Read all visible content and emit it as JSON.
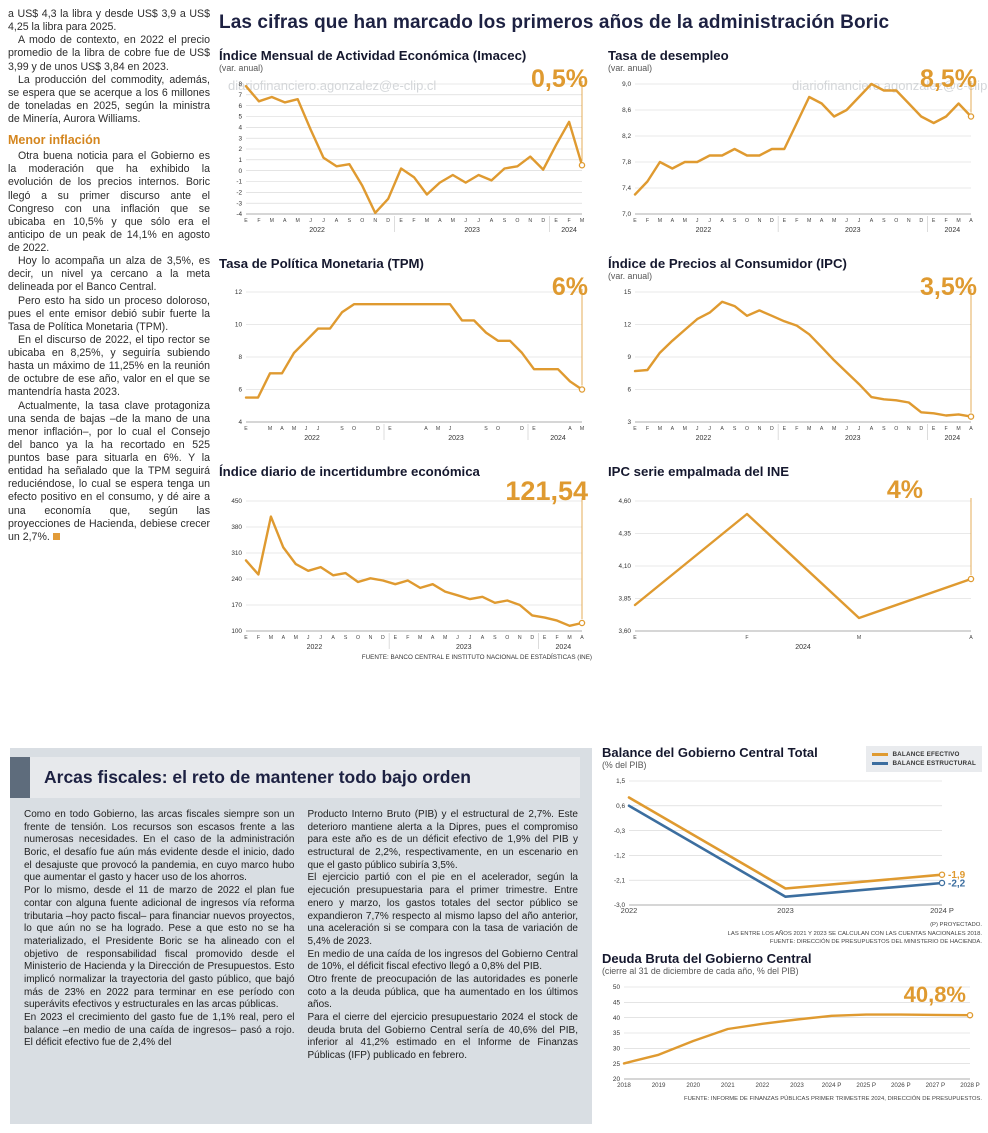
{
  "colors": {
    "accent_orange": "#DF9A30",
    "accent_blue": "#3C6E9F",
    "title_navy": "#1d2142",
    "panel_gray": "#d9dee3"
  },
  "watermark": {
    "text": "diariofinanciero.agonzalez@e-clip.cl"
  },
  "main_title": "Las cifras que han marcado los primeros años de la administración Boric",
  "left_article": {
    "paragraphs_top": [
      "a US$ 4,3 la libra y desde US$ 3,9 a US$ 4,25 la libra para 2025.",
      "A modo de contexto, en 2022 el precio promedio de la libra de cobre fue de US$ 3,99 y de unos US$ 3,84 en 2023.",
      "La producción del commodity, además, se espera que se acerque a los 6 millones de toneladas en 2025, según la ministra de Minería, Aurora Williams."
    ],
    "heading": "Menor inflación",
    "paragraphs_inflation": [
      "Otra buena noticia para el Gobierno es la moderación que ha exhibido la evolución de los precios internos. Boric llegó a su primer discurso ante el Congreso con una inflación que se ubicaba en 10,5% y que sólo era el anticipo de un peak de 14,1% en agosto de 2022.",
      "Hoy lo acompaña un alza de 3,5%, es decir, un nivel ya cercano a la meta delineada por el Banco Central.",
      "Pero esto ha sido un proceso doloroso, pues el ente emisor debió subir fuerte la Tasa de Política Monetaria (TPM).",
      "En el discurso de 2022, el tipo rector se ubicaba en 8,25%, y seguiría subiendo hasta un máximo de 11,25% en la reunión de octubre de ese año, valor en el que se mantendría hasta 2023.",
      "Actualmente, la tasa clave protagoniza una senda de bajas –de la mano de una menor inflación–, por lo cual el Consejo del banco ya la ha recortado en 525 puntos base para situarla en 6%. Y la entidad ha señalado que la TPM seguirá reduciéndose, lo cual se espera tenga un efecto positivo en el consumo, y dé aire a una economía que, según las proyecciones de Hacienda, debiese crecer un 2,7%."
    ]
  },
  "chart_data": [
    {
      "type": "line",
      "title": "Índice Mensual de Actividad Económica (Imacec)",
      "subtitle": "(var. anual)",
      "big_label": "0,5%",
      "color": "#DF9A30",
      "x": [
        "E",
        "F",
        "M",
        "A",
        "M",
        "J",
        "J",
        "A",
        "S",
        "O",
        "N",
        "D",
        "E",
        "F",
        "M",
        "A",
        "M",
        "J",
        "J",
        "A",
        "S",
        "O",
        "N",
        "D",
        "E",
        "F",
        "M"
      ],
      "year_labels": [
        {
          "label": "2022",
          "start": 0,
          "end": 11
        },
        {
          "label": "2023",
          "start": 12,
          "end": 23
        },
        {
          "label": "2024",
          "start": 24,
          "end": 26
        }
      ],
      "values": [
        7.8,
        6.4,
        6.8,
        6.3,
        6.6,
        3.8,
        1.2,
        0.4,
        0.6,
        -1.4,
        -3.9,
        -2.6,
        0.2,
        -0.6,
        -2.2,
        -1.1,
        -0.4,
        -1.1,
        -0.4,
        -0.9,
        0.2,
        0.4,
        1.3,
        0.1,
        2.4,
        4.5,
        0.5
      ],
      "ylim": [
        -4,
        8
      ],
      "yticks": [
        8,
        7,
        6,
        5,
        4,
        3,
        2,
        1,
        0,
        -1,
        -2,
        -3,
        -4
      ],
      "ytick_labels": [
        "8",
        "7",
        "6",
        "5",
        "4",
        "3",
        "2",
        "1",
        "0",
        "-1",
        "-2",
        "-3",
        "-4"
      ]
    },
    {
      "type": "line",
      "title": "Tasa de desempleo",
      "subtitle": "(var. anual)",
      "big_label": "8,5%",
      "color": "#DF9A30",
      "x": [
        "E",
        "F",
        "M",
        "A",
        "M",
        "J",
        "J",
        "A",
        "S",
        "O",
        "N",
        "D",
        "E",
        "F",
        "M",
        "A",
        "M",
        "J",
        "J",
        "A",
        "S",
        "O",
        "N",
        "D",
        "E",
        "F",
        "M",
        "A"
      ],
      "year_labels": [
        {
          "label": "2022",
          "start": 0,
          "end": 11
        },
        {
          "label": "2023",
          "start": 12,
          "end": 23
        },
        {
          "label": "2024",
          "start": 24,
          "end": 27
        }
      ],
      "values": [
        7.3,
        7.5,
        7.8,
        7.7,
        7.8,
        7.8,
        7.9,
        7.9,
        8.0,
        7.9,
        7.9,
        8.0,
        8.0,
        8.4,
        8.8,
        8.7,
        8.5,
        8.6,
        8.8,
        9.0,
        8.9,
        8.9,
        8.7,
        8.5,
        8.4,
        8.5,
        8.7,
        8.5
      ],
      "ylim": [
        7.0,
        9.0
      ],
      "yticks": [
        9.0,
        8.6,
        8.2,
        7.8,
        7.4,
        7.0
      ],
      "ytick_labels": [
        "9,0",
        "8,6",
        "8,2",
        "7,8",
        "7,4",
        "7,0"
      ]
    },
    {
      "type": "line",
      "title": "Tasa de Política Monetaria (TPM)",
      "big_label": "6%",
      "color": "#DF9A30",
      "x": [
        "E",
        "",
        "M",
        "A",
        "M",
        "J",
        "J",
        "",
        "S",
        "O",
        "",
        "D",
        "E",
        "",
        "",
        "A",
        "M",
        "J",
        "",
        "",
        "S",
        "O",
        "",
        "D",
        "E",
        "",
        "",
        "A",
        "M"
      ],
      "year_labels": [
        {
          "label": "2022",
          "start": 0,
          "end": 11
        },
        {
          "label": "2023",
          "start": 12,
          "end": 23
        },
        {
          "label": "2024",
          "start": 24,
          "end": 28
        }
      ],
      "values": [
        5.5,
        5.5,
        7.0,
        7.0,
        8.25,
        9.0,
        9.75,
        9.75,
        10.75,
        11.25,
        11.25,
        11.25,
        11.25,
        11.25,
        11.25,
        11.25,
        11.25,
        11.25,
        10.25,
        10.25,
        9.5,
        9.0,
        9.0,
        8.25,
        7.25,
        7.25,
        7.25,
        6.5,
        6.0
      ],
      "ylim": [
        4,
        12
      ],
      "yticks": [
        12,
        10,
        8,
        6,
        4
      ],
      "ytick_labels": [
        "12",
        "10",
        "8",
        "6",
        "4"
      ]
    },
    {
      "type": "line",
      "title": "Índice de Precios al Consumidor (IPC)",
      "subtitle": "(var. anual)",
      "big_label": "3,5%",
      "color": "#DF9A30",
      "x": [
        "E",
        "F",
        "M",
        "A",
        "M",
        "J",
        "J",
        "A",
        "S",
        "O",
        "N",
        "D",
        "E",
        "F",
        "M",
        "A",
        "M",
        "J",
        "J",
        "A",
        "S",
        "O",
        "N",
        "D",
        "E",
        "F",
        "M",
        "A"
      ],
      "year_labels": [
        {
          "label": "2022",
          "start": 0,
          "end": 11
        },
        {
          "label": "2023",
          "start": 12,
          "end": 23
        },
        {
          "label": "2024",
          "start": 24,
          "end": 27
        }
      ],
      "values": [
        7.7,
        7.8,
        9.4,
        10.5,
        11.5,
        12.5,
        13.1,
        14.1,
        13.7,
        12.8,
        13.3,
        12.8,
        12.3,
        11.9,
        11.1,
        9.9,
        8.7,
        7.6,
        6.5,
        5.3,
        5.1,
        5.0,
        4.8,
        3.9,
        3.8,
        3.6,
        3.7,
        3.5
      ],
      "ylim": [
        3,
        15
      ],
      "yticks": [
        15,
        12,
        9,
        6,
        3
      ],
      "ytick_labels": [
        "15",
        "12",
        "9",
        "6",
        "3"
      ]
    },
    {
      "type": "line",
      "title": "Índice diario de incertidumbre económica",
      "big_label": "121,54",
      "color": "#DF9A30",
      "source": "FUENTE: BANCO CENTRAL E INSTITUTO NACIONAL DE ESTADÍSTICAS (INE)",
      "x": [
        "E",
        "F",
        "M",
        "A",
        "M",
        "J",
        "J",
        "A",
        "S",
        "O",
        "N",
        "D",
        "E",
        "F",
        "M",
        "A",
        "M",
        "J",
        "J",
        "A",
        "S",
        "O",
        "N",
        "D",
        "E",
        "F",
        "M",
        "A"
      ],
      "year_labels": [
        {
          "label": "2022",
          "start": 0,
          "end": 11
        },
        {
          "label": "2023",
          "start": 12,
          "end": 23
        },
        {
          "label": "2024",
          "start": 24,
          "end": 27
        }
      ],
      "values": [
        290,
        252,
        408,
        325,
        280,
        262,
        272,
        250,
        256,
        232,
        242,
        236,
        226,
        236,
        216,
        226,
        206,
        196,
        186,
        192,
        176,
        182,
        170,
        142,
        136,
        128,
        114,
        121.54
      ],
      "ylim": [
        100,
        450
      ],
      "yticks": [
        450,
        380,
        310,
        240,
        170,
        100
      ],
      "ytick_labels": [
        "450",
        "380",
        "310",
        "240",
        "170",
        "100"
      ]
    },
    {
      "type": "line",
      "title": "IPC serie empalmada del INE",
      "big_label": "4%",
      "color": "#DF9A30",
      "x": [
        "E",
        "F",
        "M",
        "A"
      ],
      "year_labels": [
        {
          "label": "2024",
          "start": 0,
          "end": 3
        }
      ],
      "values": [
        3.8,
        4.5,
        3.7,
        4.0
      ],
      "ylim": [
        3.6,
        4.6
      ],
      "yticks": [
        4.6,
        4.35,
        4.1,
        3.85,
        3.6
      ],
      "ytick_labels": [
        "4,60",
        "4,35",
        "4,10",
        "3,85",
        "3,60"
      ]
    },
    {
      "type": "line",
      "title": "Balance del Gobierno Central Total",
      "subtitle": "(% del PIB)",
      "guide": false,
      "x": [
        "2022",
        "2023",
        "2024 P"
      ],
      "series": [
        {
          "name": "BALANCE EFECTIVO",
          "color": "#DF9A30",
          "values": [
            0.9,
            -2.4,
            -1.9
          ],
          "end_label": "-1,9"
        },
        {
          "name": "BALANCE ESTRUCTURAL",
          "color": "#3C6E9F",
          "values": [
            0.6,
            -2.7,
            -2.2
          ],
          "end_label": "-2,2"
        }
      ],
      "ylim": [
        -3.0,
        1.5
      ],
      "yticks": [
        1.5,
        0.6,
        -0.3,
        -1.2,
        -2.1,
        -3.0
      ],
      "ytick_labels": [
        "1,5",
        "0,6",
        "-0,3",
        "-1,2",
        "-2,1",
        "-3,0"
      ],
      "footnotes": [
        "(P) PROYECTADO.",
        "LAS ENTRE LOS AÑOS 2021 Y 2023 SE CALCULAN  CON LAS CUENTAS NACIONALES 2018.",
        "FUENTE: DIRECCIÓN DE PRESUPUESTOS DEL MINISTERIO DE HACIENDA."
      ]
    },
    {
      "type": "line",
      "title": "Deuda Bruta del Gobierno Central",
      "subtitle": "(cierre al 31 de diciembre de cada año, % del PIB)",
      "big_label": "40,8%",
      "guide": false,
      "color": "#DF9A30",
      "x": [
        "2018",
        "2019",
        "2020",
        "2021",
        "2022",
        "2023",
        "2024 P",
        "2025 P",
        "2026 P",
        "2027 P",
        "2028 P"
      ],
      "values": [
        25.1,
        27.9,
        32.4,
        36.3,
        38.0,
        39.4,
        40.6,
        41.0,
        41.0,
        40.9,
        40.8
      ],
      "ylim": [
        20,
        50
      ],
      "yticks": [
        50,
        45,
        40,
        35,
        30,
        25,
        20
      ],
      "ytick_labels": [
        "50",
        "45",
        "40",
        "35",
        "30",
        "25",
        "20"
      ],
      "footnote": "FUENTE: INFORME DE FINANZAS PÚBLICAS PRIMER TRIMESTRE 2024, DIRECCIÓN DE PRESUPUESTOS."
    }
  ],
  "bottom": {
    "header": "Arcas fiscales: el reto de mantener todo bajo orden",
    "col1": [
      "Como en todo Gobierno, las arcas fiscales siempre son un frente de tensión. Los recursos son escasos frente a las numerosas necesidades. En el caso de la administración Boric, el desafío fue aún más evidente desde el inicio, dado el desajuste que provocó la pandemia, en cuyo marco hubo que aumentar el gasto y hacer uso de los ahorros.",
      "Por lo mismo, desde el 11 de marzo de 2022 el plan fue contar con alguna fuente adicional de ingresos vía reforma tributaria –hoy pacto fiscal– para financiar nuevos proyectos, lo que aún no se ha logrado. Pese a que esto no se ha materializado, el Presidente Boric se ha alineado con el objetivo de responsabilidad fiscal promovido desde el Ministerio de Hacienda y la Dirección de Presupuestos. Esto implicó normalizar la trayectoria del gasto público, que bajó más de 23% en 2022 para terminar en ese período con superávits efectivos y estructurales en las arcas públicas.",
      "En 2023 el crecimiento del gasto fue de 1,1% real, pero el balance –en medio de una caída de ingresos– pasó a rojo. El déficit efectivo fue de 2,4% del"
    ],
    "col2": [
      "Producto Interno Bruto (PIB) y el estructural de 2,7%. Este deterioro mantiene alerta a la Dipres, pues el compromiso para este año es de un déficit efectivo de 1,9% del PIB y estructural de 2,2%, respectivamente, en un escenario en que el gasto público subiría 3,5%.",
      "El ejercicio partió con el pie en el acelerador, según la ejecución presupuestaria para el primer trimestre. Entre enero y marzo, los gastos totales del sector público se expandieron 7,7% respecto al mismo lapso del año anterior, una aceleración si se compara con la tasa de variación de 5,4% de 2023.",
      "En medio de una caída de los ingresos del Gobierno Central de 10%, el déficit fiscal efectivo llegó a 0,8% del PIB.",
      "Otro frente de preocupación de las autoridades es ponerle coto a la deuda pública, que ha aumentado en los últimos años.",
      "Para el cierre del ejercicio presupuestario 2024 el stock de deuda bruta del Gobierno Central sería de 40,6% del PIB, inferior al 41,2% estimado en el Informe de Finanzas Públicas (IFP) publicado en febrero."
    ]
  }
}
